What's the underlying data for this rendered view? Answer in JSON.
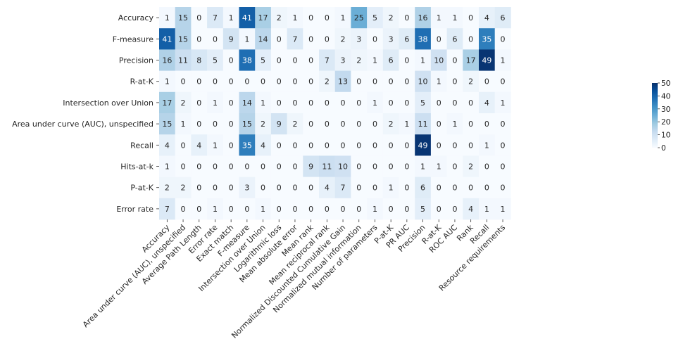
{
  "chart_data": {
    "type": "heatmap",
    "title": "",
    "xlabel": "",
    "ylabel": "",
    "rows": [
      "Accuracy",
      "F-measure",
      "Precision",
      "R-at-K",
      "Intersection over Union",
      "Area under curve (AUC), unspecified",
      "Recall",
      "Hits-at-k",
      "P-at-K",
      "Error rate"
    ],
    "columns": [
      "Accuracy",
      "Area under curve (AUC), unspecified",
      "Average Path Length",
      "Error rate",
      "Exact match",
      "F-measure",
      "Intersection over Union",
      "Logarithmic loss",
      "Mean absolute error",
      "Mean rank",
      "Mean reciprocal rank",
      "Normalized Discounted Cumulative Gain",
      "Normalized mutual information",
      "Number of parameters",
      "P-at-K",
      "PR AUC",
      "Precision",
      "R-at-K",
      "ROC AUC",
      "Rank",
      "Recall",
      "Resource requirements"
    ],
    "values": [
      [
        1,
        15,
        0,
        7,
        1,
        41,
        17,
        2,
        1,
        0,
        0,
        1,
        25,
        5,
        2,
        0,
        16,
        1,
        1,
        0,
        4,
        6
      ],
      [
        41,
        15,
        0,
        0,
        9,
        1,
        14,
        0,
        7,
        0,
        0,
        2,
        3,
        0,
        3,
        6,
        38,
        0,
        6,
        0,
        35,
        0
      ],
      [
        16,
        11,
        8,
        5,
        0,
        38,
        5,
        0,
        0,
        0,
        7,
        3,
        2,
        1,
        6,
        0,
        1,
        10,
        0,
        17,
        49,
        1
      ],
      [
        1,
        0,
        0,
        0,
        0,
        0,
        0,
        0,
        0,
        0,
        2,
        13,
        0,
        0,
        0,
        0,
        10,
        1,
        0,
        2,
        0,
        0
      ],
      [
        17,
        2,
        0,
        1,
        0,
        14,
        1,
        0,
        0,
        0,
        0,
        0,
        0,
        1,
        0,
        0,
        5,
        0,
        0,
        0,
        4,
        1
      ],
      [
        15,
        1,
        0,
        0,
        0,
        15,
        2,
        9,
        2,
        0,
        0,
        0,
        0,
        0,
        2,
        1,
        11,
        0,
        1,
        0,
        0,
        0
      ],
      [
        4,
        0,
        4,
        1,
        0,
        35,
        4,
        0,
        0,
        0,
        0,
        0,
        0,
        0,
        0,
        0,
        49,
        0,
        0,
        0,
        1,
        0
      ],
      [
        1,
        0,
        0,
        0,
        0,
        0,
        0,
        0,
        0,
        9,
        11,
        10,
        0,
        0,
        0,
        0,
        1,
        1,
        0,
        2,
        0,
        0
      ],
      [
        2,
        2,
        0,
        0,
        0,
        3,
        0,
        0,
        0,
        0,
        4,
        7,
        0,
        0,
        1,
        0,
        6,
        0,
        0,
        0,
        0,
        0
      ],
      [
        7,
        0,
        0,
        1,
        0,
        0,
        1,
        0,
        0,
        0,
        0,
        0,
        0,
        1,
        0,
        0,
        5,
        0,
        0,
        4,
        1,
        1
      ]
    ],
    "colormap": "Blues",
    "vmin": 0,
    "vmax": 50,
    "colorbar_ticks": [
      "0",
      "10",
      "20",
      "30",
      "40",
      "50"
    ],
    "colorbar_tick_values": [
      0,
      10,
      20,
      30,
      40,
      50
    ],
    "colors": {
      "low": "#f7fbff",
      "high": "#08306b",
      "dark_text": "#262626",
      "light_text": "#ffffff"
    }
  }
}
